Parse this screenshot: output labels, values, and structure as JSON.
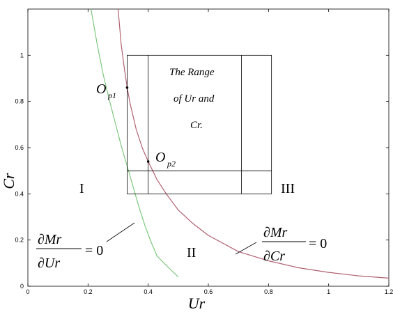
{
  "chart_data": {
    "type": "line",
    "xlabel": "Ur",
    "ylabel": "Cr",
    "xlim": [
      0,
      1.2
    ],
    "ylim": [
      0,
      1.2
    ],
    "xticks": [
      "0",
      "0.2",
      "0.4",
      "0.6",
      "0.8",
      "1",
      "1.2"
    ],
    "yticks": [
      "0",
      "0.2",
      "0.4",
      "0.6",
      "0.8",
      "1"
    ],
    "grid": false,
    "series": [
      {
        "color": "#7ec87e",
        "x": [
          0.21,
          0.23,
          0.25,
          0.27,
          0.29,
          0.31,
          0.33,
          0.35,
          0.37,
          0.39,
          0.41,
          0.43,
          0.46,
          0.5
        ],
        "y": [
          1.2,
          1.05,
          0.92,
          0.81,
          0.71,
          0.61,
          0.52,
          0.43,
          0.34,
          0.26,
          0.19,
          0.13,
          0.09,
          0.04
        ]
      },
      {
        "color": "#b06070",
        "x": [
          0.3,
          0.31,
          0.32,
          0.33,
          0.34,
          0.36,
          0.38,
          0.4,
          0.43,
          0.46,
          0.5,
          0.55,
          0.6,
          0.7,
          0.8,
          0.9,
          1.0,
          1.1,
          1.2
        ],
        "y": [
          1.2,
          1.05,
          0.95,
          0.86,
          0.79,
          0.68,
          0.6,
          0.54,
          0.46,
          0.4,
          0.33,
          0.27,
          0.22,
          0.15,
          0.11,
          0.08,
          0.06,
          0.045,
          0.035
        ]
      }
    ],
    "points": [
      {
        "x": 0.33,
        "y": 0.86,
        "label": "O",
        "sub": "p1"
      },
      {
        "x": 0.4,
        "y": 0.54,
        "label": "O",
        "sub": "p2"
      }
    ],
    "range_box": {
      "x": [
        0.33,
        0.81
      ],
      "y": [
        0.4,
        1.0
      ],
      "inner_x": [
        0.4,
        0.71
      ],
      "inner_y": [
        0.5
      ]
    },
    "annotations": {
      "box_text": [
        "The  Range",
        "of Ur and",
        "Cr."
      ],
      "regions": [
        "I",
        "II",
        "III"
      ]
    },
    "equations": [
      {
        "numerator": "∂Mr",
        "denominator": "∂Ur",
        "rhs": "= 0"
      },
      {
        "numerator": "∂Mr",
        "denominator": "∂Cr",
        "rhs": "= 0"
      }
    ]
  }
}
